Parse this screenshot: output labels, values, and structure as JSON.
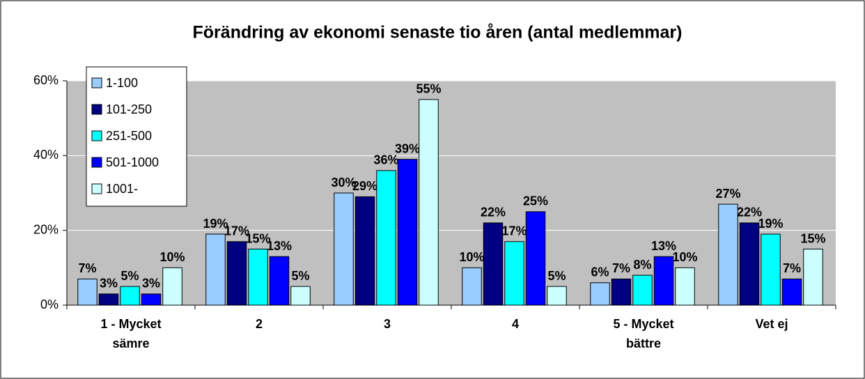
{
  "chart_data": {
    "type": "bar",
    "title": "Förändring av ekonomi senaste tio åren (antal medlemmar)",
    "categories": [
      "1 - Mycket sämre",
      "2",
      "3",
      "4",
      "5 - Mycket bättre",
      "Vet ej"
    ],
    "series": [
      {
        "name": "1-100",
        "color": "#99ccff",
        "values": [
          7,
          19,
          30,
          10,
          6,
          27
        ],
        "value_labels": [
          "7%",
          "19%",
          "30%",
          "10%",
          "6%",
          "27%"
        ]
      },
      {
        "name": "101-250",
        "color": "#000080",
        "values": [
          3,
          17,
          29,
          22,
          7,
          22
        ],
        "value_labels": [
          "3%",
          "17%",
          "29%",
          "22%",
          "7%",
          "22%"
        ]
      },
      {
        "name": "251-500",
        "color": "#00ffff",
        "values": [
          5,
          15,
          36,
          17,
          8,
          19
        ],
        "value_labels": [
          "5%",
          "15%",
          "36%",
          "17%",
          "8%",
          "19%"
        ]
      },
      {
        "name": "501-1000",
        "color": "#0000ff",
        "values": [
          3,
          13,
          39,
          25,
          13,
          7
        ],
        "value_labels": [
          "3%",
          "13%",
          "39%",
          "25%",
          "13%",
          "7%"
        ]
      },
      {
        "name": "1001-",
        "color": "#ccffff",
        "values": [
          10,
          5,
          55,
          5,
          10,
          15
        ],
        "value_labels": [
          "10%",
          "5%",
          "55%",
          "5%",
          "10%",
          "15%"
        ]
      }
    ],
    "ylim": [
      0,
      60
    ],
    "yticks": [
      {
        "value": 0,
        "label": "0%"
      },
      {
        "value": 20,
        "label": "20%"
      },
      {
        "value": 40,
        "label": "40%"
      },
      {
        "value": 60,
        "label": "60%"
      }
    ],
    "grid": true,
    "legend": "upper left"
  }
}
